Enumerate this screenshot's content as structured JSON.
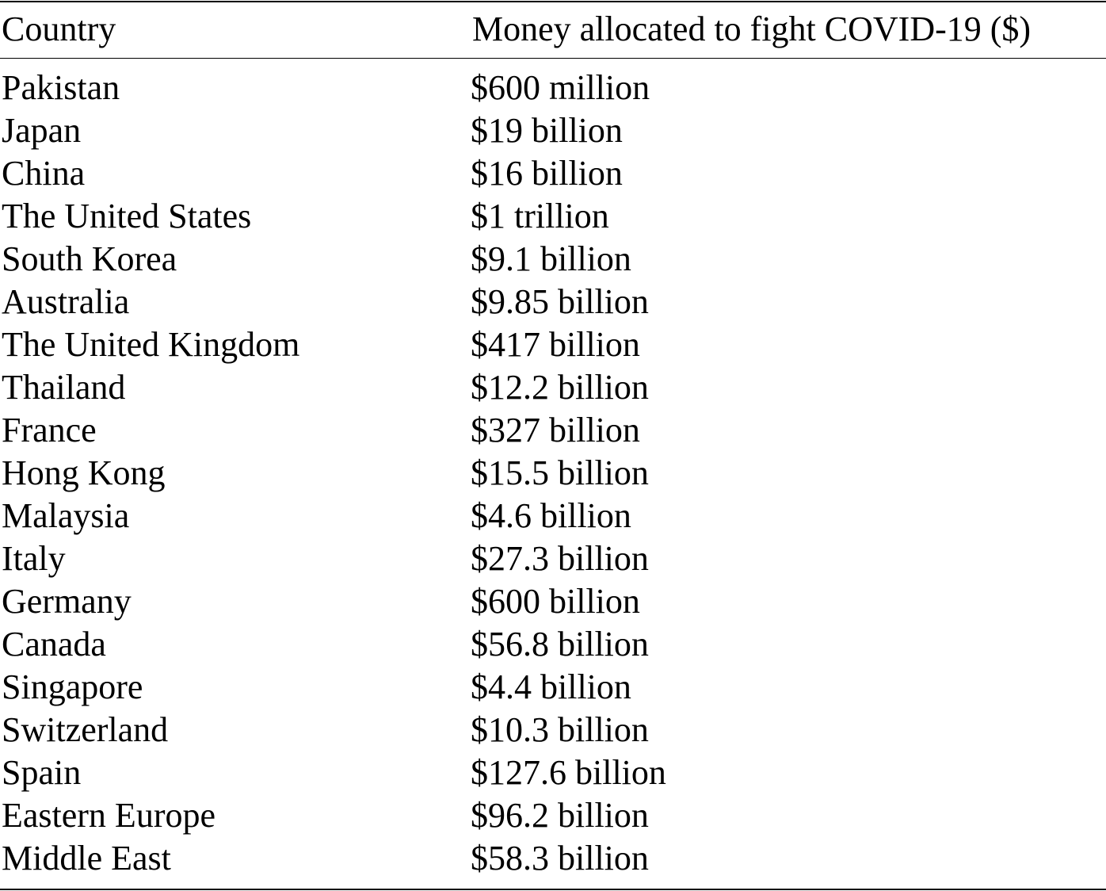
{
  "table": {
    "headers": {
      "country": "Country",
      "money": "Money allocated to fight COVID-19 ($)"
    },
    "rows": [
      {
        "country": "Pakistan",
        "money": "$600 million"
      },
      {
        "country": "Japan",
        "money": "$19 billion"
      },
      {
        "country": "China",
        "money": "$16 billion"
      },
      {
        "country": "The United States",
        "money": "$1 trillion"
      },
      {
        "country": "South Korea",
        "money": "$9.1 billion"
      },
      {
        "country": "Australia",
        "money": "$9.85 billion"
      },
      {
        "country": "The United Kingdom",
        "money": "$417 billion"
      },
      {
        "country": "Thailand",
        "money": "$12.2 billion"
      },
      {
        "country": "France",
        "money": "$327 billion"
      },
      {
        "country": "Hong Kong",
        "money": "$15.5 billion"
      },
      {
        "country": "Malaysia",
        "money": "$4.6 billion"
      },
      {
        "country": "Italy",
        "money": "$27.3 billion"
      },
      {
        "country": "Germany",
        "money": "$600 billion"
      },
      {
        "country": "Canada",
        "money": "$56.8 billion"
      },
      {
        "country": "Singapore",
        "money": "$4.4 billion"
      },
      {
        "country": "Switzerland",
        "money": "$10.3 billion"
      },
      {
        "country": "Spain",
        "money": "$127.6 billion"
      },
      {
        "country": "Eastern Europe",
        "money": "$96.2 billion"
      },
      {
        "country": "Middle East",
        "money": "$58.3 billion"
      }
    ]
  }
}
